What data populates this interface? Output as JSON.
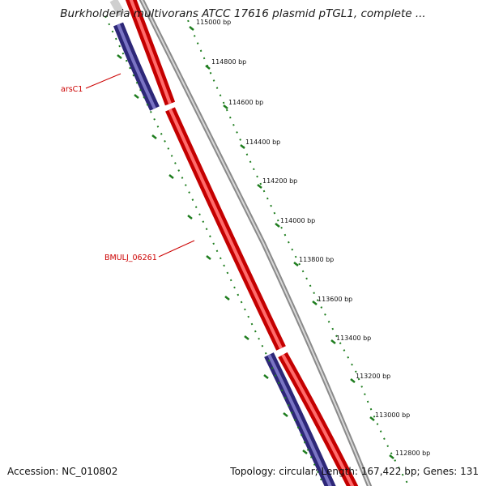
{
  "title": "Burkholderia multivorans ATCC 17616 plasmid pTGL1, complete ...",
  "footer": {
    "accession": "Accession: NC_010802",
    "summary": "Topology: circular; Length: 167,422 bp; Genes: 131"
  },
  "colors": {
    "forward_gene": "#ee0000",
    "reverse_gene": "#3b3590",
    "backbone": "#8a8a8a",
    "ticks": "#1e7d1e",
    "label": "#cc0000"
  },
  "ticks": [
    {
      "label": "115000 bp"
    },
    {
      "label": "114800 bp"
    },
    {
      "label": "114600 bp"
    },
    {
      "label": "114400 bp"
    },
    {
      "label": "114200 bp"
    },
    {
      "label": "114000 bp"
    },
    {
      "label": "113800 bp"
    },
    {
      "label": "113600 bp"
    },
    {
      "label": "113400 bp"
    },
    {
      "label": "113200 bp"
    },
    {
      "label": "113000 bp"
    },
    {
      "label": "112800 bp"
    }
  ],
  "gene_labels": [
    {
      "name": "arsC1"
    },
    {
      "name": "BMULJ_06261"
    }
  ]
}
